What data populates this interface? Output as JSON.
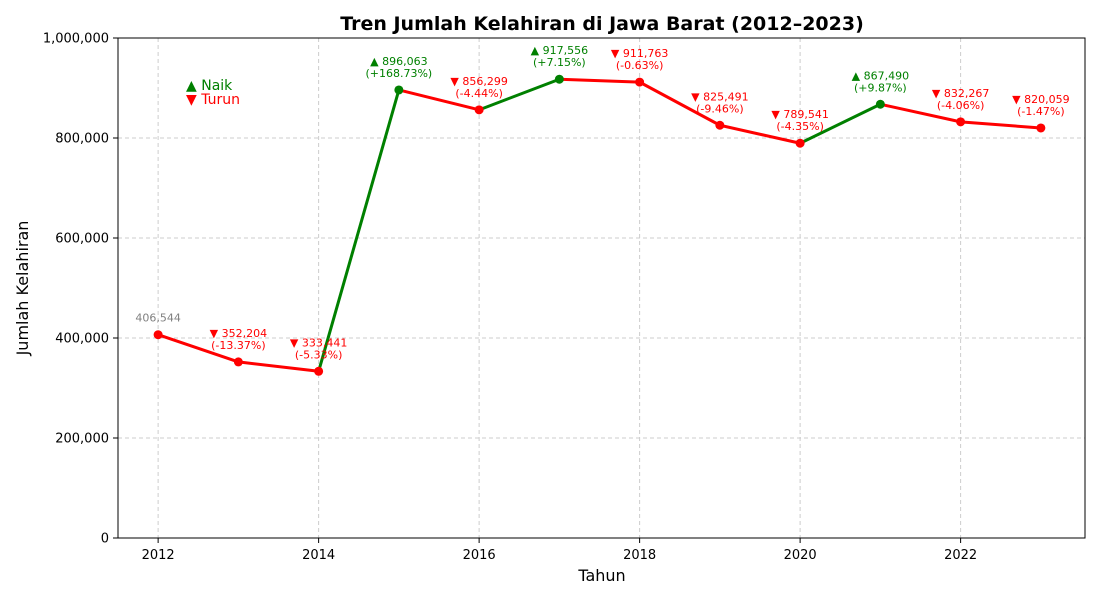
{
  "colors": {
    "up": "#008000",
    "down": "#ff0000",
    "first": "#808080",
    "grid": "#cccccc"
  },
  "legend": {
    "placement": "top-left",
    "up_label": "▲ Naik",
    "down_label": "▼ Turun"
  },
  "chart_data": {
    "type": "line",
    "title": "Tren Jumlah Kelahiran di Jawa Barat (2012–2023)",
    "xlabel": "Tahun",
    "ylabel": "Jumlah Kelahiran",
    "xlim": [
      2011.5,
      2023.55
    ],
    "ylim": [
      0,
      1000000
    ],
    "xticks": [
      "2012",
      "2014",
      "2016",
      "2018",
      "2020",
      "2022"
    ],
    "yticks": [
      "0",
      "200,000",
      "400,000",
      "600,000",
      "800,000",
      "1,000,000"
    ],
    "grid": true,
    "x": [
      2012,
      2013,
      2014,
      2015,
      2016,
      2017,
      2018,
      2019,
      2020,
      2021,
      2022,
      2023
    ],
    "values": [
      406544,
      352204,
      333441,
      896063,
      856299,
      917556,
      911763,
      825491,
      789541,
      867490,
      832267,
      820059
    ],
    "trend": [
      "first",
      "down",
      "down",
      "up",
      "down",
      "up",
      "down",
      "down",
      "down",
      "up",
      "down",
      "down"
    ],
    "annotations": [
      [
        "406,544"
      ],
      [
        "▼ 352,204",
        "(-13.37%)"
      ],
      [
        "▼ 333,441",
        "(-5.33%)"
      ],
      [
        "▲ 896,063",
        "(+168.73%)"
      ],
      [
        "▼ 856,299",
        "(-4.44%)"
      ],
      [
        "▲ 917,556",
        "(+7.15%)"
      ],
      [
        "▼ 911,763",
        "(-0.63%)"
      ],
      [
        "▼ 825,491",
        "(-9.46%)"
      ],
      [
        "▼ 789,541",
        "(-4.35%)"
      ],
      [
        "▲ 867,490",
        "(+9.87%)"
      ],
      [
        "▼ 832,267",
        "(-4.06%)"
      ],
      [
        "▼ 820,059",
        "(-1.47%)"
      ]
    ]
  }
}
